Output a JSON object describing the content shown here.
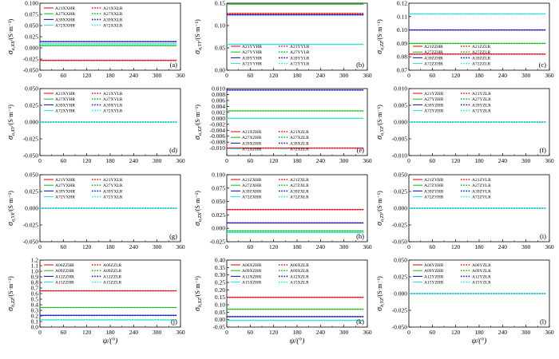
{
  "chart_data": [
    {
      "id": "a",
      "type": "line",
      "panel_label": "(a)",
      "ylabel": "σ_{a,XX}/(S·m⁻¹)",
      "xlabel": "",
      "ylim": [
        -0.05,
        0.1
      ],
      "yticks": [
        "-0.050",
        "-0.025",
        "0.000",
        "0.025",
        "0.050",
        "0.075",
        "0.100"
      ],
      "xticks": [
        "0",
        "60",
        "120",
        "180",
        "240",
        "300",
        "360"
      ],
      "legend_pos": "top-left",
      "series": [
        {
          "name": "A21XXHR",
          "color": "#e8101a",
          "dash": false,
          "value": -0.028
        },
        {
          "name": "A21XXLR",
          "color": "#e8101a",
          "dash": true,
          "value": -0.028
        },
        {
          "name": "A27XXHR",
          "color": "#22c02a",
          "dash": false,
          "value": 0.005
        },
        {
          "name": "A27XXLR",
          "color": "#22c02a",
          "dash": true,
          "value": 0.005
        },
        {
          "name": "A39XXHR",
          "color": "#1f1fbd",
          "dash": false,
          "value": 0.014
        },
        {
          "name": "A39XXLR",
          "color": "#1f1fbd",
          "dash": true,
          "value": 0.014
        },
        {
          "name": "A72XXHR",
          "color": "#2ee3e3",
          "dash": false,
          "value": 0.009
        },
        {
          "name": "A72XXLR",
          "color": "#2ee3e3",
          "dash": true,
          "value": 0.009
        }
      ]
    },
    {
      "id": "b",
      "type": "line",
      "panel_label": "(b)",
      "ylabel": "σ_{a,YY}/(S·m⁻¹)",
      "xlabel": "",
      "ylim": [
        0.0,
        0.15
      ],
      "yticks": [
        "0.00",
        "0.05",
        "0.10",
        "0.15"
      ],
      "xticks": [
        "0",
        "60",
        "120",
        "180",
        "240",
        "300",
        "360"
      ],
      "legend_pos": "bottom-left",
      "series": [
        {
          "name": "A21YYHR",
          "color": "#e8101a",
          "dash": false,
          "value": 0.127
        },
        {
          "name": "A21YYLR",
          "color": "#e8101a",
          "dash": true,
          "value": 0.127
        },
        {
          "name": "A27YYHR",
          "color": "#22c02a",
          "dash": false,
          "value": 0.148
        },
        {
          "name": "A27YYLR",
          "color": "#22c02a",
          "dash": true,
          "value": 0.148
        },
        {
          "name": "A39YYHR",
          "color": "#1f1fbd",
          "dash": false,
          "value": 0.124
        },
        {
          "name": "A39YYLR",
          "color": "#1f1fbd",
          "dash": true,
          "value": 0.124
        },
        {
          "name": "A72YYHR",
          "color": "#2ee3e3",
          "dash": false,
          "value": 0.058
        },
        {
          "name": "A72YYLR",
          "color": "#2ee3e3",
          "dash": true,
          "value": 0.058
        }
      ]
    },
    {
      "id": "c",
      "type": "line",
      "panel_label": "(c)",
      "ylabel": "σ_{a,ZZ}/(S·m⁻¹)",
      "xlabel": "",
      "ylim": [
        0.07,
        0.12
      ],
      "yticks": [
        "0.07",
        "0.08",
        "0.09",
        "0.10",
        "0.11",
        "0.12"
      ],
      "xticks": [
        "0",
        "60",
        "120",
        "180",
        "240",
        "300",
        "360"
      ],
      "legend_pos": "bottom-left",
      "series": [
        {
          "name": "A21ZZHR",
          "color": "#e8101a",
          "dash": false,
          "value": 0.082
        },
        {
          "name": "A21ZZLR",
          "color": "#e8101a",
          "dash": true,
          "value": 0.082
        },
        {
          "name": "A27ZZHR",
          "color": "#22c02a",
          "dash": false,
          "value": 0.09
        },
        {
          "name": "A27ZZLR",
          "color": "#22c02a",
          "dash": true,
          "value": 0.09
        },
        {
          "name": "A39ZZHR",
          "color": "#1f1fbd",
          "dash": false,
          "value": 0.1
        },
        {
          "name": "A39ZZLR",
          "color": "#1f1fbd",
          "dash": true,
          "value": 0.1
        },
        {
          "name": "A72ZZHR",
          "color": "#2ee3e3",
          "dash": false,
          "value": 0.112
        },
        {
          "name": "A72ZZLR",
          "color": "#2ee3e3",
          "dash": true,
          "value": 0.112
        }
      ]
    },
    {
      "id": "d",
      "type": "line",
      "panel_label": "(d)",
      "ylabel": "σ_{a,XY}/(S·m⁻¹)",
      "xlabel": "",
      "ylim": [
        -0.05,
        0.05
      ],
      "yticks": [
        "-0.050",
        "-0.025",
        "0.000",
        "0.025",
        "0.050"
      ],
      "xticks": [
        "0",
        "60",
        "120",
        "180",
        "240",
        "300",
        "360"
      ],
      "legend_pos": "top-left",
      "series": [
        {
          "name": "A21XYHR",
          "color": "#e8101a",
          "dash": false,
          "value": 0.0
        },
        {
          "name": "A21XYLR",
          "color": "#e8101a",
          "dash": true,
          "value": 0.0
        },
        {
          "name": "A27XYHR",
          "color": "#22c02a",
          "dash": false,
          "value": 0.0
        },
        {
          "name": "A27XYLR",
          "color": "#22c02a",
          "dash": true,
          "value": 0.0
        },
        {
          "name": "A39XYHR",
          "color": "#1f1fbd",
          "dash": false,
          "value": 0.0
        },
        {
          "name": "A39XYLR",
          "color": "#1f1fbd",
          "dash": true,
          "value": 0.0
        },
        {
          "name": "A72XYHR",
          "color": "#2ee3e3",
          "dash": false,
          "value": 0.0
        },
        {
          "name": "A72XYLR",
          "color": "#2ee3e3",
          "dash": true,
          "value": 0.0
        }
      ]
    },
    {
      "id": "e",
      "type": "line",
      "panel_label": "(e)",
      "ylabel": "σ_{a,XZ}/(S·m⁻¹)",
      "xlabel": "",
      "ylim": [
        -0.0125,
        0.01
      ],
      "yticks": [
        "-0.010",
        "-0.008",
        "-0.006",
        "-0.004",
        "-0.002",
        "0.000",
        "0.002",
        "0.004",
        "0.006",
        "0.008",
        "0.010"
      ],
      "xticks": [
        "0",
        "60",
        "120",
        "180",
        "240",
        "300",
        "360"
      ],
      "legend_pos": "bottom-left",
      "series": [
        {
          "name": "A21XZHR",
          "color": "#e8101a",
          "dash": false,
          "value": -0.01
        },
        {
          "name": "A21XZLR",
          "color": "#e8101a",
          "dash": true,
          "value": -0.01
        },
        {
          "name": "A27XZHR",
          "color": "#22c02a",
          "dash": false,
          "value": 0.0025
        },
        {
          "name": "A27XZLR",
          "color": "#22c02a",
          "dash": true,
          "value": 0.0025
        },
        {
          "name": "A39XZHR",
          "color": "#1f1fbd",
          "dash": false,
          "value": 0.0095
        },
        {
          "name": "A39XZLR",
          "color": "#1f1fbd",
          "dash": true,
          "value": 0.0095
        },
        {
          "name": "A72XZHR",
          "color": "#2ee3e3",
          "dash": false,
          "value": 0.0
        },
        {
          "name": "A72XZLR",
          "color": "#2ee3e3",
          "dash": true,
          "value": 0.0
        }
      ]
    },
    {
      "id": "f",
      "type": "line",
      "panel_label": "(f)",
      "ylabel": "σ_{a,YZ}/(S·m⁻¹)",
      "xlabel": "",
      "ylim": [
        -0.01,
        0.01
      ],
      "yticks": [
        "-0.010",
        "-0.005",
        "0.000",
        "0.005",
        "0.010"
      ],
      "xticks": [
        "0",
        "60",
        "120",
        "180",
        "240",
        "300",
        "360"
      ],
      "legend_pos": "top-left",
      "series": [
        {
          "name": "A21YZHR",
          "color": "#e8101a",
          "dash": false,
          "value": 0.0
        },
        {
          "name": "A21YZLR",
          "color": "#e8101a",
          "dash": true,
          "value": 0.0
        },
        {
          "name": "A27YZHR",
          "color": "#22c02a",
          "dash": false,
          "value": 0.0
        },
        {
          "name": "A27YZLR",
          "color": "#22c02a",
          "dash": true,
          "value": 0.0
        },
        {
          "name": "A39YZHR",
          "color": "#1f1fbd",
          "dash": false,
          "value": 0.0
        },
        {
          "name": "A39YZLR",
          "color": "#1f1fbd",
          "dash": true,
          "value": 0.0
        },
        {
          "name": "A72YZHR",
          "color": "#2ee3e3",
          "dash": false,
          "value": 0.0
        },
        {
          "name": "A72YZLR",
          "color": "#2ee3e3",
          "dash": true,
          "value": 0.0
        }
      ]
    },
    {
      "id": "g",
      "type": "line",
      "panel_label": "(g)",
      "ylabel": "σ_{a,YX}/(S·m⁻¹)",
      "xlabel": "",
      "ylim": [
        -0.05,
        0.05
      ],
      "yticks": [
        "-0.050",
        "-0.025",
        "0.000",
        "0.025",
        "0.050"
      ],
      "xticks": [
        "0",
        "60",
        "120",
        "180",
        "240",
        "300",
        "360"
      ],
      "legend_pos": "top-left",
      "series": [
        {
          "name": "A21YXHR",
          "color": "#e8101a",
          "dash": false,
          "value": 0.0
        },
        {
          "name": "A21YXLR",
          "color": "#e8101a",
          "dash": true,
          "value": 0.0
        },
        {
          "name": "A27YXHR",
          "color": "#22c02a",
          "dash": false,
          "value": 0.0
        },
        {
          "name": "A27YXLR",
          "color": "#22c02a",
          "dash": true,
          "value": 0.0
        },
        {
          "name": "A39YXHR",
          "color": "#1f1fbd",
          "dash": false,
          "value": 0.0
        },
        {
          "name": "A39YXLR",
          "color": "#1f1fbd",
          "dash": true,
          "value": 0.0
        },
        {
          "name": "A72YXHR",
          "color": "#2ee3e3",
          "dash": false,
          "value": 0.0
        },
        {
          "name": "A72YXLR",
          "color": "#2ee3e3",
          "dash": true,
          "value": 0.0
        }
      ]
    },
    {
      "id": "h",
      "type": "line",
      "panel_label": "(h)",
      "ylabel": "σ_{a,ZX}/(S·m⁻¹)",
      "xlabel": "",
      "ylim": [
        -0.025,
        0.1
      ],
      "yticks": [
        "-0.025",
        "0.000",
        "0.025",
        "0.050",
        "0.075",
        "0.100"
      ],
      "xticks": [
        "0",
        "60",
        "120",
        "180",
        "240",
        "300",
        "360"
      ],
      "legend_pos": "top-left",
      "series": [
        {
          "name": "A21ZXHR",
          "color": "#e8101a",
          "dash": false,
          "value": 0.035
        },
        {
          "name": "A21ZXLR",
          "color": "#e8101a",
          "dash": true,
          "value": 0.035
        },
        {
          "name": "A27ZXHR",
          "color": "#22c02a",
          "dash": false,
          "value": -0.005
        },
        {
          "name": "A27ZXLR",
          "color": "#22c02a",
          "dash": true,
          "value": -0.005
        },
        {
          "name": "A39ZXHR",
          "color": "#1f1fbd",
          "dash": false,
          "value": 0.01
        },
        {
          "name": "A39ZXLR",
          "color": "#1f1fbd",
          "dash": true,
          "value": 0.01
        },
        {
          "name": "A72ZXHR",
          "color": "#2ee3e3",
          "dash": false,
          "value": -0.008
        },
        {
          "name": "A72ZXLR",
          "color": "#2ee3e3",
          "dash": true,
          "value": -0.008
        }
      ]
    },
    {
      "id": "i",
      "type": "line",
      "panel_label": "(i)",
      "ylabel": "σ_{a,ZY}/(S·m⁻¹)",
      "xlabel": "",
      "ylim": [
        -0.05,
        0.05
      ],
      "yticks": [
        "-0.050",
        "-0.025",
        "0.000",
        "0.025",
        "0.050"
      ],
      "xticks": [
        "0",
        "60",
        "120",
        "180",
        "240",
        "300",
        "360"
      ],
      "legend_pos": "top-left",
      "series": [
        {
          "name": "A21ZYHR",
          "color": "#e8101a",
          "dash": false,
          "value": 0.0
        },
        {
          "name": "A21ZYLR",
          "color": "#e8101a",
          "dash": true,
          "value": 0.0
        },
        {
          "name": "A27ZYHR",
          "color": "#22c02a",
          "dash": false,
          "value": 0.0
        },
        {
          "name": "A27ZYLR",
          "color": "#22c02a",
          "dash": true,
          "value": 0.0
        },
        {
          "name": "A39ZYHR",
          "color": "#1f1fbd",
          "dash": false,
          "value": 0.0
        },
        {
          "name": "A39ZYLR",
          "color": "#1f1fbd",
          "dash": true,
          "value": 0.0
        },
        {
          "name": "A72ZYHR",
          "color": "#2ee3e3",
          "dash": false,
          "value": 0.0
        },
        {
          "name": "A72ZYLR",
          "color": "#2ee3e3",
          "dash": true,
          "value": 0.0
        }
      ]
    },
    {
      "id": "j",
      "type": "line",
      "panel_label": "(j)",
      "ylabel": "σ_{b,ZZ}/(S·m⁻¹)",
      "xlabel": "ψ/(°)",
      "ylim": [
        0.0,
        1.2
      ],
      "yticks": [
        "0.0",
        "0.1",
        "0.2",
        "0.3",
        "0.4",
        "0.5",
        "0.6",
        "0.7",
        "0.8",
        "0.9",
        "1.0",
        "1.1",
        "1.2"
      ],
      "xticks": [
        "0",
        "60",
        "120",
        "180",
        "240",
        "300",
        "360"
      ],
      "legend_pos": "top-left",
      "series": [
        {
          "name": "A06ZZHR",
          "color": "#e8101a",
          "dash": false,
          "value": 0.65
        },
        {
          "name": "A06ZZLR",
          "color": "#e8101a",
          "dash": true,
          "value": 0.65
        },
        {
          "name": "A09ZZHR",
          "color": "#22c02a",
          "dash": false,
          "value": 0.35
        },
        {
          "name": "A09ZZLR",
          "color": "#22c02a",
          "dash": true,
          "value": 0.35
        },
        {
          "name": "A12ZZHR",
          "color": "#1f1fbd",
          "dash": false,
          "value": 0.21
        },
        {
          "name": "A12ZZLR",
          "color": "#1f1fbd",
          "dash": true,
          "value": 0.21
        },
        {
          "name": "A15ZZHR",
          "color": "#2ee3e3",
          "dash": false,
          "value": 0.13
        },
        {
          "name": "A15ZZLR",
          "color": "#2ee3e3",
          "dash": true,
          "value": 0.13
        }
      ]
    },
    {
      "id": "k",
      "type": "line",
      "panel_label": "(k)",
      "ylabel": "σ_{b,XZ}/(S·m⁻¹)",
      "xlabel": "ψ/(°)",
      "ylim": [
        -0.05,
        0.4
      ],
      "yticks": [
        "-0.05",
        "0.00",
        "0.05",
        "0.10",
        "0.15",
        "0.20",
        "0.25",
        "0.30",
        "0.35",
        "0.40"
      ],
      "xticks": [
        "0",
        "60",
        "120",
        "180",
        "240",
        "300",
        "360"
      ],
      "legend_pos": "top-left",
      "series": [
        {
          "name": "A06XZHR",
          "color": "#e8101a",
          "dash": false,
          "value": 0.15
        },
        {
          "name": "A06XZLR",
          "color": "#e8101a",
          "dash": true,
          "value": 0.15
        },
        {
          "name": "A09XZHR",
          "color": "#22c02a",
          "dash": false,
          "value": 0.07
        },
        {
          "name": "A09XZLR",
          "color": "#22c02a",
          "dash": true,
          "value": 0.07
        },
        {
          "name": "A12XZHR",
          "color": "#1f1fbd",
          "dash": false,
          "value": 0.02
        },
        {
          "name": "A12XZLR",
          "color": "#1f1fbd",
          "dash": true,
          "value": 0.02
        },
        {
          "name": "A15XZHR",
          "color": "#2ee3e3",
          "dash": false,
          "value": -0.005
        },
        {
          "name": "A15XZLR",
          "color": "#2ee3e3",
          "dash": true,
          "value": -0.005
        }
      ]
    },
    {
      "id": "l",
      "type": "line",
      "panel_label": "(l)",
      "ylabel": "σ_{b,YZ}/(S·m⁻¹)",
      "xlabel": "ψ/(°)",
      "ylim": [
        -0.05,
        0.05
      ],
      "yticks": [
        "-0.050",
        "-0.025",
        "0.000",
        "0.025",
        "0.050"
      ],
      "xticks": [
        "0",
        "60",
        "120",
        "180",
        "240",
        "300",
        "360"
      ],
      "legend_pos": "top-left",
      "series": [
        {
          "name": "A06YZHR",
          "color": "#e8101a",
          "dash": false,
          "value": 0.0
        },
        {
          "name": "A06YZLR",
          "color": "#e8101a",
          "dash": true,
          "value": 0.0
        },
        {
          "name": "A09YZHR",
          "color": "#22c02a",
          "dash": false,
          "value": 0.0
        },
        {
          "name": "A09YZLR",
          "color": "#22c02a",
          "dash": true,
          "value": 0.0
        },
        {
          "name": "A12YZHR",
          "color": "#1f1fbd",
          "dash": false,
          "value": 0.0
        },
        {
          "name": "A12YZLR",
          "color": "#1f1fbd",
          "dash": true,
          "value": 0.0
        },
        {
          "name": "A15YZHR",
          "color": "#2ee3e3",
          "dash": false,
          "value": 0.0
        },
        {
          "name": "A15YZLR",
          "color": "#2ee3e3",
          "dash": true,
          "value": 0.0
        }
      ]
    }
  ]
}
